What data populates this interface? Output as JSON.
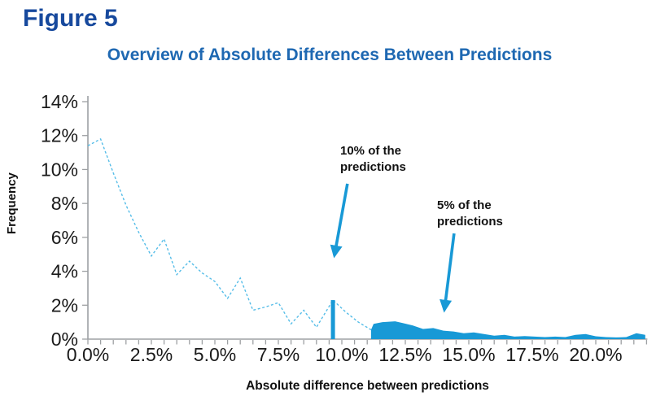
{
  "page": {
    "figure_label": "Figure 5"
  },
  "chart_data": {
    "type": "line",
    "title": "Overview of Absolute Differences Between Predictions",
    "xlabel": "Absolute difference between predictions",
    "ylabel": "Frequency",
    "xlim": [
      0,
      22
    ],
    "ylim": [
      0,
      14
    ],
    "grid": false,
    "x_tick_values": [
      0,
      2.5,
      5,
      7.5,
      10,
      12.5,
      15,
      17.5,
      20
    ],
    "x_tick_labels": [
      "0.0%",
      "2.5%",
      "5.0%",
      "7.5%",
      "10.0%",
      "12.5%",
      "15.0%",
      "17.5%",
      "20.0%"
    ],
    "x_minor_tick_step": 0.5,
    "y_tick_values": [
      0,
      2,
      4,
      6,
      8,
      10,
      12,
      14
    ],
    "y_tick_labels": [
      "0%",
      "2%",
      "4%",
      "6%",
      "8%",
      "10%",
      "12%",
      "14%"
    ],
    "series": [
      {
        "name": "frequency-distribution-line",
        "type": "line",
        "style": "dashed",
        "x": [
          0,
          0.5,
          1.0,
          1.5,
          2.0,
          2.5,
          3.0,
          3.5,
          4.0,
          4.5,
          5.0,
          5.5,
          6.0,
          6.5,
          7.0,
          7.5,
          8.0,
          8.5,
          9.0,
          9.65,
          10.15,
          10.65,
          11.15
        ],
        "y": [
          11.4,
          11.8,
          9.8,
          7.9,
          6.3,
          4.9,
          5.9,
          3.8,
          4.6,
          3.9,
          3.4,
          2.4,
          3.6,
          1.7,
          1.9,
          2.15,
          0.9,
          1.7,
          0.7,
          2.3,
          1.6,
          1.0,
          0.55
        ]
      },
      {
        "name": "tail-filled-area",
        "type": "area",
        "x": [
          11.15,
          11.25,
          11.6,
          12.1,
          12.4,
          12.8,
          13.2,
          13.6,
          14.0,
          14.4,
          14.8,
          15.2,
          15.6,
          16.0,
          16.4,
          16.8,
          17.2,
          17.6,
          18.0,
          18.4,
          18.8,
          19.2,
          19.6,
          20.0,
          20.4,
          20.8,
          21.2,
          21.6,
          21.95
        ],
        "y": [
          0.55,
          0.9,
          1.0,
          1.05,
          0.95,
          0.8,
          0.6,
          0.65,
          0.5,
          0.45,
          0.35,
          0.4,
          0.3,
          0.2,
          0.25,
          0.15,
          0.18,
          0.15,
          0.12,
          0.15,
          0.12,
          0.25,
          0.3,
          0.17,
          0.12,
          0.1,
          0.12,
          0.35,
          0.25
        ]
      }
    ],
    "threshold_marker": {
      "x": 9.65,
      "height": 2.3
    },
    "annotations": [
      {
        "line1": "10% of the",
        "line2": "predictions",
        "arrow": {
          "x1": 10.22,
          "y1": 9.16,
          "x2": 9.71,
          "y2": 4.94
        }
      },
      {
        "line1": "5% of the",
        "line2": "predictions",
        "arrow": {
          "x1": 14.42,
          "y1": 6.23,
          "x2": 14.04,
          "y2": 1.73
        }
      }
    ],
    "colors": {
      "solid_blue": "#1899D6",
      "dashed_line_blue": "#55BDE8",
      "title_blue": "#1E68B2",
      "figure_label_blue": "#17499D",
      "axis_grey": "#9DA0A3",
      "tick_text": "#1a1a1a"
    }
  }
}
